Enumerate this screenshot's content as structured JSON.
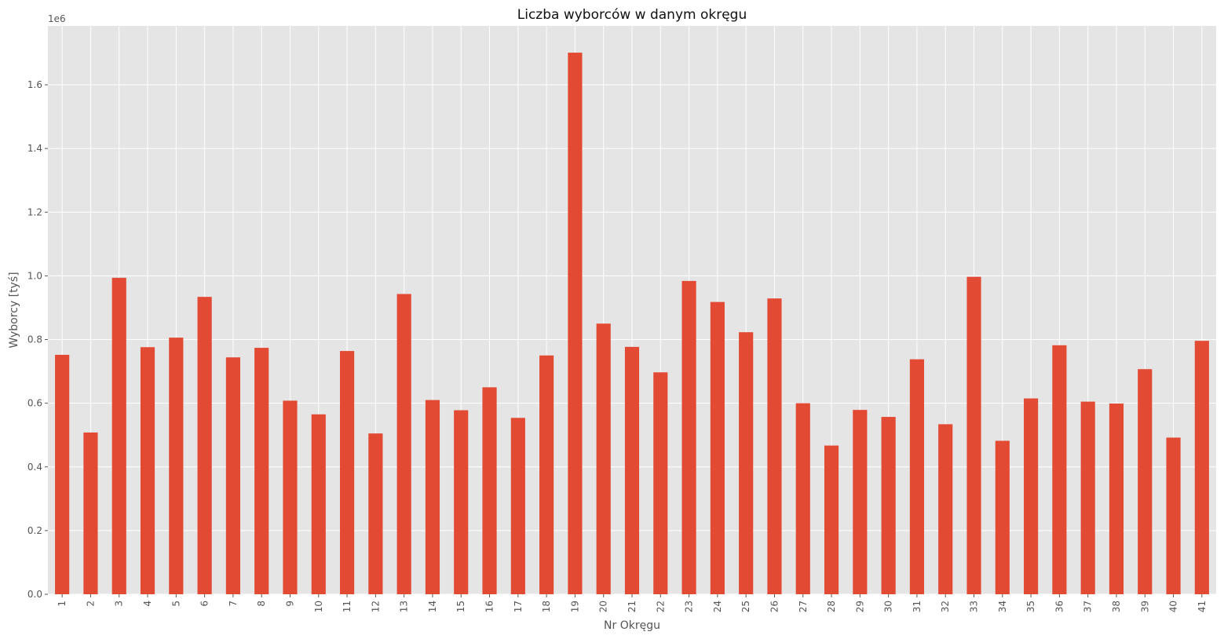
{
  "chart_data": {
    "type": "bar",
    "title": "Liczba wyborców w danym okręgu",
    "xlabel": "Nr Okręgu",
    "ylabel": "Wyborcy [tyś]",
    "y_offset_label": "1e6",
    "ylim": [
      0,
      1.785
    ],
    "y_ticks": [
      0.0,
      0.2,
      0.4,
      0.6,
      0.8,
      1.0,
      1.2,
      1.4,
      1.6
    ],
    "y_tick_labels": [
      "0.0",
      "0.2",
      "0.4",
      "0.6",
      "0.8",
      "1.0",
      "1.2",
      "1.4",
      "1.6"
    ],
    "grid": true,
    "categories": [
      "1",
      "2",
      "3",
      "4",
      "5",
      "6",
      "7",
      "8",
      "9",
      "10",
      "11",
      "12",
      "13",
      "14",
      "15",
      "16",
      "17",
      "18",
      "19",
      "20",
      "21",
      "22",
      "23",
      "24",
      "25",
      "26",
      "27",
      "28",
      "29",
      "30",
      "31",
      "32",
      "33",
      "34",
      "35",
      "36",
      "37",
      "38",
      "39",
      "40",
      "41"
    ],
    "values": [
      0.752,
      0.508,
      0.994,
      0.776,
      0.806,
      0.934,
      0.744,
      0.774,
      0.608,
      0.565,
      0.764,
      0.505,
      0.943,
      0.61,
      0.578,
      0.65,
      0.554,
      0.75,
      1.701,
      0.85,
      0.777,
      0.697,
      0.984,
      0.918,
      0.823,
      0.929,
      0.6,
      0.467,
      0.579,
      0.557,
      0.738,
      0.534,
      0.997,
      0.482,
      0.615,
      0.782,
      0.605,
      0.599,
      0.707,
      0.492,
      0.796
    ],
    "colors": {
      "bar": "#E24A33",
      "plot_bg": "#E5E5E5",
      "grid": "#FFFFFF",
      "text": "#555555",
      "title": "#111111"
    }
  }
}
